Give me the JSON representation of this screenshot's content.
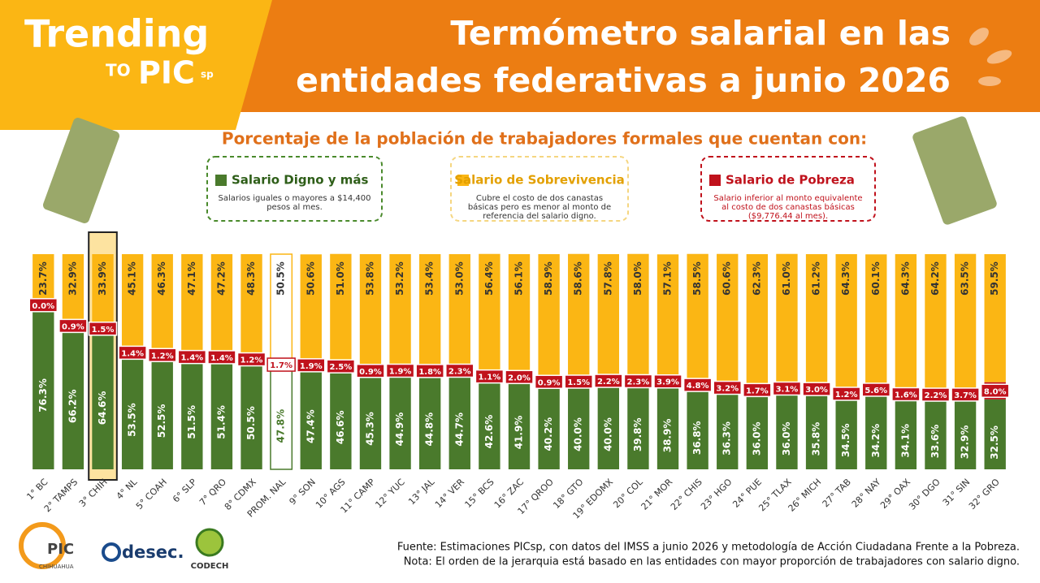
{
  "chart_data": {
    "type": "stacked-bar",
    "brand": {
      "name": "Trending",
      "connector": "TO",
      "org": "PIC",
      "suffix": "sp"
    },
    "title": [
      "Termómetro salarial en las",
      "entidades federativas a  junio 2026"
    ],
    "subtitle": "Porcentaje de la población de trabajadores formales que cuentan con:",
    "categories": [
      "1° BC",
      "2° TAMPS",
      "3° CHIH",
      "4° NL",
      "5° COAH",
      "6° SLP",
      "7° QRO",
      "8° CDMX",
      "PROM. NAL",
      "9° SON",
      "10° AGS",
      "11° CAMP",
      "12° YUC",
      "13° JAL",
      "14° VER",
      "15° BCS",
      "16° ZAC",
      "17° QROO",
      "18° GTO",
      "19° EDOMX",
      "20° COL",
      "21° MOR",
      "22° CHIS",
      "23° HGO",
      "24° PUE",
      "25° TLAX",
      "26° MICH",
      "27° TAB",
      "28° NAY",
      "29° OAX",
      "30° DGO",
      "31° SIN",
      "32° GRO"
    ],
    "series": [
      {
        "name": "Salario Digno y más",
        "color": "#4a7a2c",
        "border": "#4a8a2c",
        "description": [
          "Salarios iguales o mayores a $14,400",
          "pesos al mes."
        ],
        "values": [
          76.3,
          66.2,
          64.6,
          53.5,
          52.5,
          51.5,
          51.4,
          50.5,
          47.8,
          47.4,
          46.6,
          45.3,
          44.9,
          44.8,
          44.7,
          42.6,
          41.9,
          40.2,
          40.0,
          40.0,
          39.8,
          38.9,
          36.8,
          36.3,
          36.0,
          36.0,
          35.8,
          34.5,
          34.2,
          34.1,
          33.6,
          32.9,
          32.5
        ],
        "value_labels": [
          "76.3%",
          "66.2%",
          "64.6%",
          "53.5%",
          "52.5%",
          "51.5%",
          "51.4%",
          "50.5%",
          "47.8%",
          "47.4%",
          "46.6%",
          "45.3%",
          "44.9%",
          "44.8%",
          "44.7%",
          "42.6%",
          "41.9%",
          "40.2%",
          "40.0%",
          "40.0%",
          "39.8%",
          "38.9%",
          "36.8%",
          "36.3%",
          "36.0%",
          "36.0%",
          "35.8%",
          "34.5%",
          "34.2%",
          "34.1%",
          "33.6%",
          "32.9%",
          "32.5%"
        ]
      },
      {
        "name": "Salario de Sobrevivencia",
        "color": "#fbb614",
        "border": "#f5d680",
        "description": [
          "Cubre el costo de dos canastas",
          "básicas pero es menor al monto de",
          "referencia del salario digno."
        ],
        "values": [
          23.7,
          32.9,
          33.9,
          45.1,
          46.3,
          47.1,
          47.2,
          48.3,
          50.5,
          50.6,
          51.0,
          53.8,
          53.2,
          53.4,
          53.0,
          56.4,
          56.1,
          58.9,
          58.6,
          57.8,
          58.0,
          57.1,
          58.5,
          60.6,
          62.3,
          61.0,
          61.2,
          64.3,
          60.1,
          64.3,
          64.2,
          63.5,
          59.5
        ],
        "value_labels": [
          "23.7%",
          "32.9%",
          "33.9%",
          "45.1%",
          "46.3%",
          "47.1%",
          "47.2%",
          "48.3%",
          "50.5%",
          "50.6%",
          "51.0%",
          "53.8%",
          "53.2%",
          "53.4%",
          "53.0%",
          "56.4%",
          "56.1%",
          "58.9%",
          "58.6%",
          "57.8%",
          "58.0%",
          "57.1%",
          "58.5%",
          "60.6%",
          "62.3%",
          "61.0%",
          "61.2%",
          "64.3%",
          "60.1%",
          "64.3%",
          "64.2%",
          "63.5%",
          "59.5%"
        ]
      },
      {
        "name": "Salario de Pobreza",
        "color": "#c0121c",
        "border": "#c0121c",
        "description": [
          "Salario inferior al monto equivalente",
          "al costo de dos canastas básicas",
          "($9,776.44 al mes)."
        ],
        "values": [
          0.0,
          0.9,
          1.5,
          1.4,
          1.2,
          1.4,
          1.4,
          1.2,
          1.7,
          1.9,
          2.5,
          0.9,
          1.9,
          1.8,
          2.3,
          1.1,
          2.0,
          0.9,
          1.5,
          2.2,
          2.3,
          3.9,
          4.8,
          3.2,
          1.7,
          3.1,
          3.0,
          1.2,
          5.6,
          1.6,
          2.2,
          3.7,
          8.0
        ],
        "value_labels": [
          "0.0%",
          "0.9%",
          "1.5%",
          "1.4%",
          "1.2%",
          "1.4%",
          "1.4%",
          "1.2%",
          "1.7%",
          "1.9%",
          "2.5%",
          "0.9%",
          "1.9%",
          "1.8%",
          "2.3%",
          "1.1%",
          "2.0%",
          "0.9%",
          "1.5%",
          "2.2%",
          "2.3%",
          "3.9%",
          "4.8%",
          "3.2%",
          "1.7%",
          "3.1%",
          "3.0%",
          "1.2%",
          "5.6%",
          "1.6%",
          "2.2%",
          "3.7%",
          "8.0%"
        ]
      }
    ],
    "ylim": [
      0,
      100
    ],
    "logos": [
      "PIC",
      "CHIHUAHUA",
      "desec.",
      "CODECH"
    ],
    "notes": [
      "Fuente: Estimaciones PICsp, con datos del IMSS a junio 2026 y metodología de Acción Ciudadana Frente a la Pobreza.",
      "Nota: El orden de la jerarquia está basado en las entidades con mayor proporción de trabajadores con salario digno."
    ]
  }
}
